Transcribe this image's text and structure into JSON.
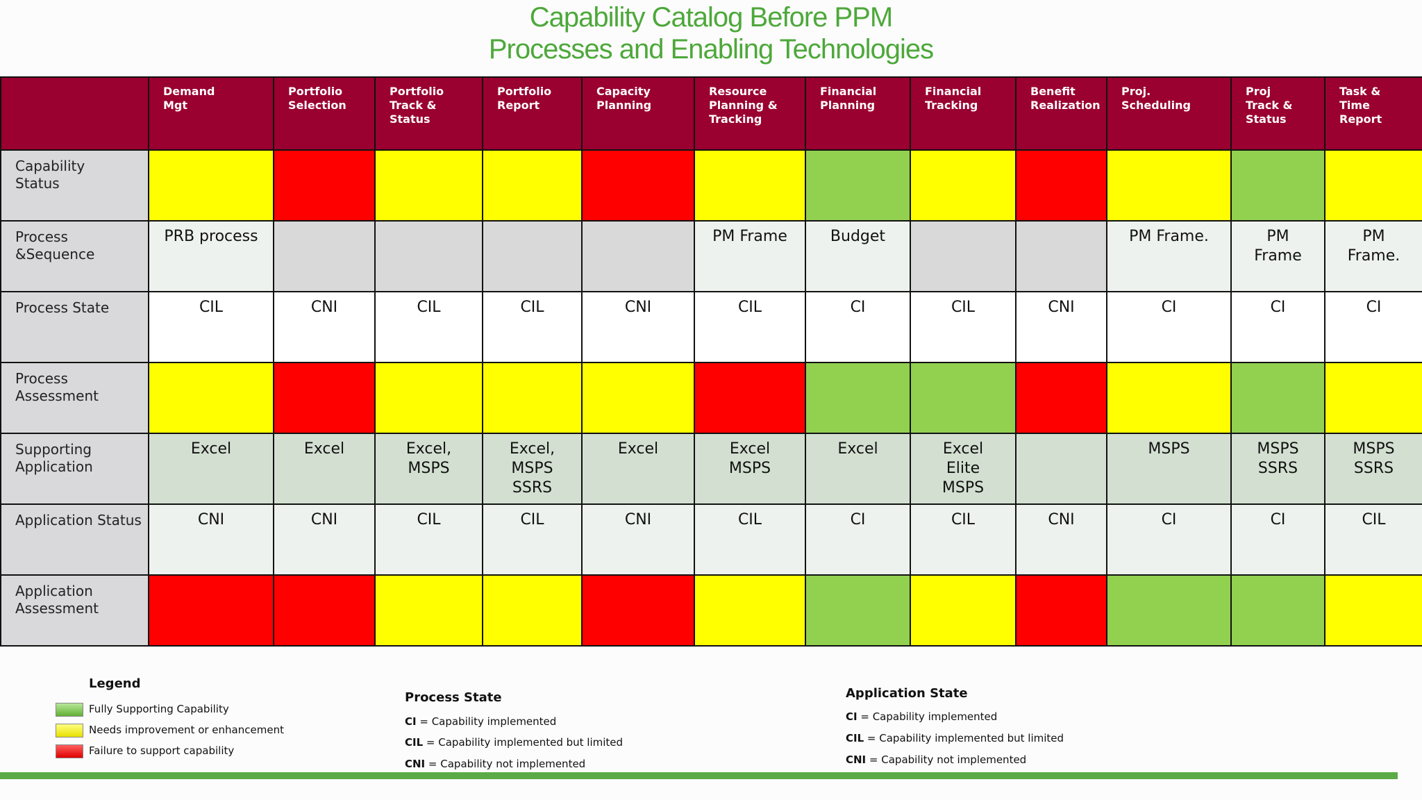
{
  "title": {
    "line1": "Capability Catalog  Before PPM",
    "line2": "Processes and Enabling Technologies"
  },
  "colors": {
    "header": "#9a0030",
    "yellow": "#ffff00",
    "red": "#ff0000",
    "green": "#92d050",
    "title_green": "#4da83a"
  },
  "table": {
    "columns": [
      "Demand\nMgt",
      "Portfolio\nSelection",
      "Portfolio\nTrack &\nStatus",
      "Portfolio\nReport",
      "Capacity\nPlanning",
      "Resource\nPlanning &\nTracking",
      "Financial\nPlanning",
      "Financial\nTracking",
      "Benefit\nRealization",
      "Proj.\nScheduling",
      "Proj\nTrack &\nStatus",
      "Task &\nTime\nReport"
    ],
    "rows": [
      {
        "label": "Capability\nStatus",
        "type": "color",
        "cells": [
          "yellow",
          "red",
          "yellow",
          "yellow",
          "red",
          "yellow",
          "green",
          "yellow",
          "red",
          "yellow",
          "green",
          "yellow"
        ]
      },
      {
        "label": "Process\n&Sequence",
        "type": "text",
        "cells": [
          {
            "text": "PRB process",
            "bg": "light"
          },
          {
            "text": "",
            "bg": "gray"
          },
          {
            "text": "",
            "bg": "gray"
          },
          {
            "text": "",
            "bg": "gray"
          },
          {
            "text": "",
            "bg": "gray"
          },
          {
            "text": "PM Frame",
            "bg": "light"
          },
          {
            "text": "Budget",
            "bg": "light"
          },
          {
            "text": "",
            "bg": "gray"
          },
          {
            "text": "",
            "bg": "gray"
          },
          {
            "text": "PM Frame.",
            "bg": "light"
          },
          {
            "text": "PM\nFrame",
            "bg": "light"
          },
          {
            "text": "PM\nFrame.",
            "bg": "light"
          }
        ]
      },
      {
        "label": "Process State",
        "type": "text",
        "cells": [
          {
            "text": "CIL",
            "bg": "white"
          },
          {
            "text": "CNI",
            "bg": "white"
          },
          {
            "text": "CIL",
            "bg": "white"
          },
          {
            "text": "CIL",
            "bg": "white"
          },
          {
            "text": "CNI",
            "bg": "white"
          },
          {
            "text": "CIL",
            "bg": "white"
          },
          {
            "text": "CI",
            "bg": "white"
          },
          {
            "text": "CIL",
            "bg": "white"
          },
          {
            "text": "CNI",
            "bg": "white"
          },
          {
            "text": "CI",
            "bg": "white"
          },
          {
            "text": "CI",
            "bg": "white"
          },
          {
            "text": "CI",
            "bg": "white"
          }
        ]
      },
      {
        "label": "Process\nAssessment",
        "type": "color",
        "cells": [
          "yellow",
          "red",
          "yellow",
          "yellow",
          "yellow",
          "red",
          "green",
          "green",
          "red",
          "yellow",
          "green",
          "yellow"
        ]
      },
      {
        "label": "Supporting\nApplication",
        "type": "text",
        "cells": [
          {
            "text": "Excel",
            "bg": "sage"
          },
          {
            "text": "Excel",
            "bg": "sage"
          },
          {
            "text": "Excel,\nMSPS",
            "bg": "sage"
          },
          {
            "text": "Excel,\nMSPS\nSSRS",
            "bg": "sage"
          },
          {
            "text": "Excel",
            "bg": "sage"
          },
          {
            "text": "Excel\nMSPS",
            "bg": "sage"
          },
          {
            "text": "Excel",
            "bg": "sage"
          },
          {
            "text": "Excel\nElite\nMSPS",
            "bg": "sage"
          },
          {
            "text": "",
            "bg": "sage"
          },
          {
            "text": "MSPS",
            "bg": "sage"
          },
          {
            "text": "MSPS\nSSRS",
            "bg": "sage"
          },
          {
            "text": "MSPS\nSSRS",
            "bg": "sage"
          }
        ]
      },
      {
        "label": "Application Status",
        "type": "text",
        "cells": [
          {
            "text": "CNI",
            "bg": "light"
          },
          {
            "text": "CNI",
            "bg": "light"
          },
          {
            "text": "CIL",
            "bg": "light"
          },
          {
            "text": "CIL",
            "bg": "light"
          },
          {
            "text": "CNI",
            "bg": "light"
          },
          {
            "text": "CIL",
            "bg": "light"
          },
          {
            "text": "CI",
            "bg": "light"
          },
          {
            "text": "CIL",
            "bg": "light"
          },
          {
            "text": "CNI",
            "bg": "light"
          },
          {
            "text": "CI",
            "bg": "light"
          },
          {
            "text": "CI",
            "bg": "light"
          },
          {
            "text": "CIL",
            "bg": "light"
          }
        ]
      },
      {
        "label": "Application\nAssessment",
        "type": "color",
        "cells": [
          "red",
          "red",
          "yellow",
          "yellow",
          "red",
          "yellow",
          "green",
          "yellow",
          "red",
          "green",
          "green",
          "yellow"
        ]
      }
    ]
  },
  "legend": {
    "title": "Legend",
    "items": [
      {
        "color": "green",
        "label": "Fully Supporting Capability"
      },
      {
        "color": "yellow",
        "label": "Needs improvement or enhancement"
      },
      {
        "color": "red",
        "label": "Failure to support capability"
      }
    ]
  },
  "process_state": {
    "title": "Process State",
    "items": [
      {
        "code": "CI",
        "desc": " = Capability implemented"
      },
      {
        "code": "CIL",
        "desc": " = Capability implemented but  limited"
      },
      {
        "code": "CNI",
        "desc": " = Capability not implemented"
      }
    ]
  },
  "application_state": {
    "title": "Application State",
    "items": [
      {
        "code": "CI",
        "desc": " = Capability implemented"
      },
      {
        "code": "CIL",
        "desc": " = Capability implemented but  limited"
      },
      {
        "code": "CNI",
        "desc": " = Capability not implemented"
      }
    ]
  }
}
